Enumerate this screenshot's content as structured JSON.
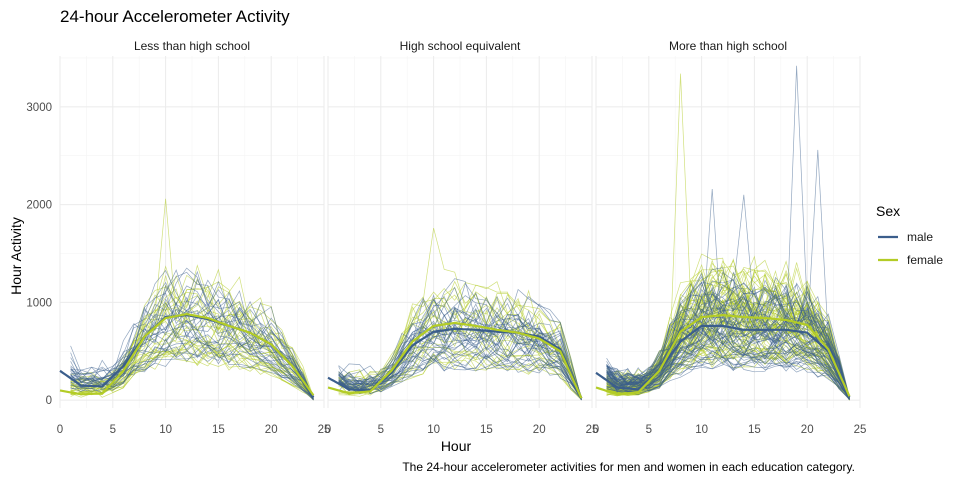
{
  "chart_data": {
    "type": "line",
    "title": "24-hour Accelerometer Activity",
    "caption": "The 24-hour accelerometer activities for men and women in each education category.",
    "xlabel": "Hour",
    "ylabel": "Hour Activity",
    "xlim": [
      0,
      25
    ],
    "ylim": [
      -80,
      3520
    ],
    "x_ticks": [
      0,
      5,
      10,
      15,
      20,
      25
    ],
    "y_ticks": [
      0,
      1000,
      2000,
      3000
    ],
    "grid": true,
    "legend": {
      "title": "Sex",
      "position": "right",
      "entries": [
        {
          "label": "male",
          "color": "#3b5e8c"
        },
        {
          "label": "female",
          "color": "#b3cc26"
        }
      ]
    },
    "panels": [
      {
        "label": "Less than high school",
        "smooth": {
          "x": [
            0,
            2,
            4,
            6,
            8,
            10,
            12,
            14,
            16,
            18,
            20,
            22,
            24
          ],
          "series": [
            {
              "name": "male",
              "values": [
                300,
                150,
                140,
                350,
                650,
                850,
                870,
                830,
                760,
                690,
                570,
                350,
                30
              ]
            },
            {
              "name": "female",
              "values": [
                100,
                60,
                70,
                300,
                650,
                840,
                880,
                840,
                760,
                690,
                570,
                350,
                50
              ]
            }
          ]
        },
        "individual_counts": {
          "male": 28,
          "female": 30
        },
        "individual_peak": 2060
      },
      {
        "label": "High school equivalent",
        "smooth": {
          "x": [
            0,
            2,
            4,
            6,
            8,
            10,
            12,
            14,
            16,
            18,
            20,
            22,
            24
          ],
          "series": [
            {
              "name": "male",
              "values": [
                230,
                110,
                100,
                280,
                560,
                700,
                730,
                720,
                700,
                690,
                650,
                520,
                20
              ]
            },
            {
              "name": "female",
              "values": [
                130,
                70,
                90,
                300,
                600,
                760,
                790,
                760,
                720,
                690,
                630,
                500,
                20
              ]
            }
          ]
        },
        "individual_counts": {
          "male": 34,
          "female": 24
        },
        "individual_peak": 1760
      },
      {
        "label": "More than high school",
        "smooth": {
          "x": [
            0,
            2,
            4,
            6,
            8,
            10,
            12,
            14,
            16,
            18,
            20,
            22,
            24
          ],
          "series": [
            {
              "name": "male",
              "values": [
                280,
                130,
                110,
                300,
                600,
                760,
                760,
                720,
                720,
                720,
                690,
                500,
                30
              ]
            },
            {
              "name": "female",
              "values": [
                130,
                60,
                80,
                300,
                700,
                850,
                870,
                850,
                840,
                820,
                770,
                520,
                40
              ]
            }
          ]
        },
        "individual_counts": {
          "male": 56,
          "female": 70
        },
        "spikes": [
          {
            "series": "female",
            "hour": 8,
            "value": 3340
          },
          {
            "series": "male",
            "hour": 19,
            "value": 3420
          },
          {
            "series": "male",
            "hour": 21,
            "value": 2560
          },
          {
            "series": "male",
            "hour": 11,
            "value": 2160
          },
          {
            "series": "male",
            "hour": 14,
            "value": 2100
          }
        ]
      }
    ]
  }
}
